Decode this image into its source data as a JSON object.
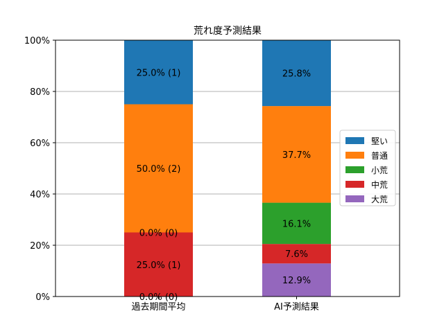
{
  "chart_data": {
    "type": "bar",
    "stacked": true,
    "title": "荒れ度予測結果",
    "categories": [
      "過去期間平均",
      "AI予測結果"
    ],
    "ylim": [
      0,
      100
    ],
    "y_ticks": [
      "0%",
      "20%",
      "40%",
      "60%",
      "80%",
      "100%"
    ],
    "y_tick_values": [
      0,
      20,
      40,
      60,
      80,
      100
    ],
    "grid": "horizontal",
    "legend_placement": "right",
    "stack_order_bottom_to_top": [
      "大荒",
      "中荒",
      "小荒",
      "普通",
      "堅い"
    ],
    "legend_order": [
      "堅い",
      "普通",
      "小荒",
      "中荒",
      "大荒"
    ],
    "series": [
      {
        "name": "大荒",
        "color": "#9467bd",
        "values": [
          0.0,
          12.9
        ],
        "labels": [
          "0.0% (0)",
          "12.9%"
        ]
      },
      {
        "name": "中荒",
        "color": "#d62728",
        "values": [
          25.0,
          7.6
        ],
        "labels": [
          "25.0% (1)",
          "7.6%"
        ]
      },
      {
        "name": "小荒",
        "color": "#2ca02c",
        "values": [
          0.0,
          16.1
        ],
        "labels": [
          "0.0% (0)",
          "16.1%"
        ]
      },
      {
        "name": "普通",
        "color": "#ff7f0e",
        "values": [
          50.0,
          37.7
        ],
        "labels": [
          "50.0% (2)",
          "37.7%"
        ]
      },
      {
        "name": "堅い",
        "color": "#1f77b4",
        "values": [
          25.0,
          25.8
        ],
        "labels": [
          "25.0% (1)",
          "25.8%"
        ]
      }
    ]
  }
}
